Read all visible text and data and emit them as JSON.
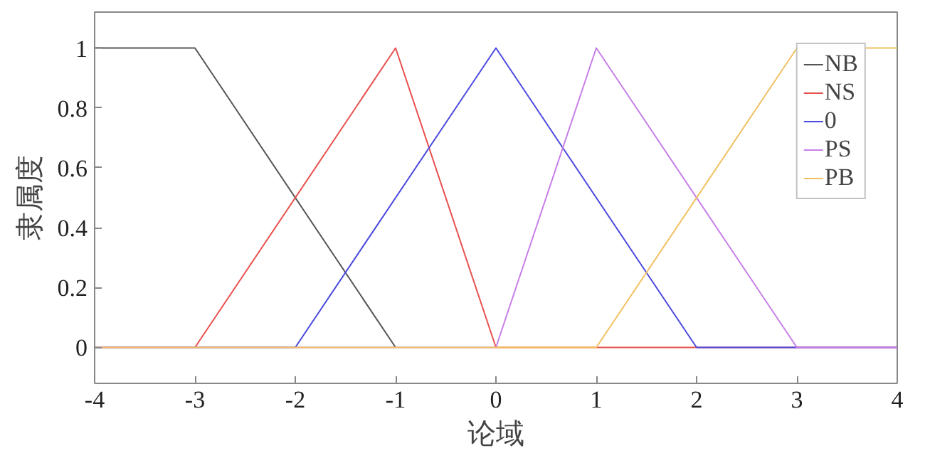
{
  "chart_data": {
    "type": "line",
    "xlabel": "论域",
    "ylabel": "隶属度",
    "xlim": [
      -4,
      4
    ],
    "ylim": [
      -0.12,
      1.12
    ],
    "xticks": [
      -4,
      -3,
      -2,
      -1,
      0,
      1,
      2,
      3,
      4
    ],
    "yticks": [
      0,
      0.2,
      0.4,
      0.6,
      0.8,
      1
    ],
    "grid": false,
    "legend": "top right",
    "marker": "none",
    "line_style": "solid",
    "series": [
      {
        "name": "NB",
        "color": "#555555",
        "x": [
          -4,
          -3,
          -1
        ],
        "values": [
          1,
          1,
          0
        ]
      },
      {
        "name": "NS",
        "color": "#e8504e",
        "x": [
          -4,
          -3,
          -1,
          0,
          4
        ],
        "values": [
          0,
          0,
          1,
          0,
          0
        ]
      },
      {
        "name": "0",
        "color": "#4a4adf",
        "x": [
          -4,
          -2,
          0,
          2,
          4
        ],
        "values": [
          0,
          0,
          1,
          0,
          0
        ]
      },
      {
        "name": "PS",
        "color": "#c77ee8",
        "x": [
          -4,
          0,
          1,
          3,
          4
        ],
        "values": [
          0,
          0,
          1,
          0,
          0
        ]
      },
      {
        "name": "PB",
        "color": "#f0c060",
        "x": [
          -4,
          1,
          3,
          4
        ],
        "values": [
          0,
          0,
          1,
          1
        ]
      }
    ]
  }
}
